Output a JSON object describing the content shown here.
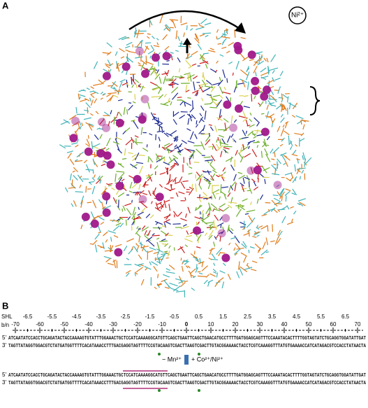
{
  "panel_a": {
    "label": "A",
    "ion_label": "Ni²⁺"
  },
  "panel_b": {
    "label": "B",
    "shl_label": "SHL",
    "bn_label": "b/n",
    "shl_ticks": [
      -6.5,
      -5.5,
      -4.5,
      -3.5,
      -2.5,
      -1.5,
      -0.5,
      0.5,
      1.5,
      2.5,
      3.5,
      4.5,
      5.5,
      6.5
    ],
    "bn_ticks": [
      -70,
      -60,
      -50,
      -40,
      -30,
      -20,
      -10,
      0,
      10,
      20,
      30,
      40,
      50,
      60,
      70
    ],
    "five_prime": "5'",
    "three_prime": "3'",
    "top_block": {
      "strand_5": "ATCAATATCCACCTGCAGATACTACCAAAAGTGTATTTGGAAACTGCTCCATCAAAAGGCATGTTCAGCTGAATTCAGCTGAACATGCCTTTTGATGGAGCAGTTTCCAAATACACTTTTGGTAGTATCTGCAGGTGGATATTGAT",
      "strand_3": "TAGTTATAGGTGGACGTCTATGATGGTTTTCACATAAACCTTTGACGAGGTAGTTTTCCGTACAAGTCGACTTAAGTCGACTTGTACGGAAAACTACCTCGTCAAAGGTTTATGTGAAAACCATCATAGACGTCCACCTATAACTA"
    },
    "treatment_minus": "− Mn²⁺",
    "treatment_plus": "+ Co²⁺/Ni²⁺",
    "bottom_block": {
      "strand_5": "ATCAATATCCACCTGCAGATACTACCAAAAGTGTATTTGGAAACTGCTCCATCAAAAGGCATGTTCAGCTGAATTCAGCTGAACATGCCTTTTGATGGAGCAGTTTCCAAATACACTTTTGGTAGTATCTGCAGGTGGATATTGAT",
      "strand_3": "TAGTTATAGGTGGACGTCTATGATGGTTTTCACATAAACCTTTGACGAGGTAGTTTTCCGTACAAGTCGACTTAAGTCGACTTGTACGGAAAACTACCTCGTCAAAGGTTTATGTGAAAACCATCATAGACGTCCACCTATAACTA"
    }
  }
}
